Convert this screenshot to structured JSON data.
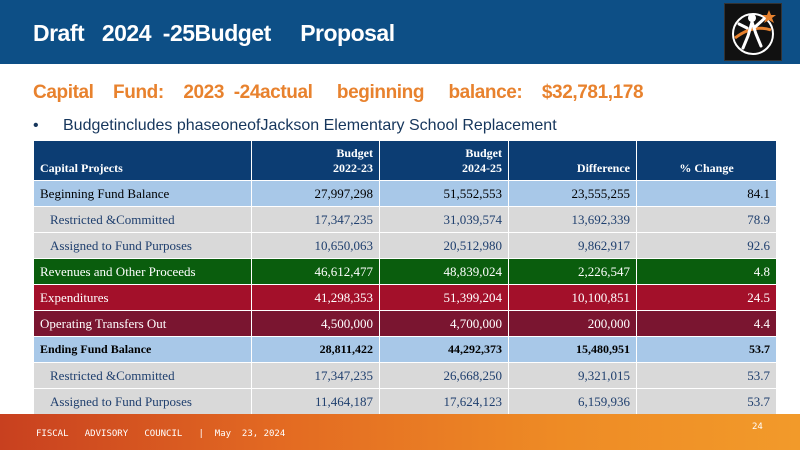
{
  "header": {
    "title": "Draft   2024  -25Budget     Proposal"
  },
  "subtitle": "Capital    Fund:    2023  -24actual     beginning     balance:    $32,781,178",
  "bullet": "Budgetincludes phaseoneofJackson Elementary School Replacement",
  "table": {
    "col1": "Capital   Projects",
    "col2_line1": "Budget",
    "col2_line2": "2022-23",
    "col3_line1": "Budget",
    "col3_line2": "2024-25",
    "col4": "Difference",
    "col5": "% Change",
    "rows": [
      {
        "label": "Beginning   Fund Balance",
        "b2223": "27,997,298",
        "b2425": "51,552,553",
        "diff": "23,555,255",
        "pct": "84.1"
      },
      {
        "label": "Restricted  &Committed",
        "b2223": "17,347,235",
        "b2425": "31,039,574",
        "diff": "13,692,339",
        "pct": "78.9"
      },
      {
        "label": "Assigned  to Fund Purposes",
        "b2223": "10,650,063",
        "b2425": "20,512,980",
        "diff": "9,862,917",
        "pct": "92.6"
      },
      {
        "label": "Revenues  and  Other  Proceeds",
        "b2223": "46,612,477",
        "b2425": "48,839,024",
        "diff": "2,226,547",
        "pct": "4.8"
      },
      {
        "label": "Expenditures",
        "b2223": "41,298,353",
        "b2425": "51,399,204",
        "diff": "10,100,851",
        "pct": "24.5"
      },
      {
        "label": "Operating   Transfers Out",
        "b2223": "4,500,000",
        "b2425": "4,700,000",
        "diff": "200,000",
        "pct": "4.4"
      },
      {
        "label": "Ending   Fund   Balance",
        "b2223": "28,811,422",
        "b2425": "44,292,373",
        "diff": "15,480,951",
        "pct": "53.7"
      },
      {
        "label": "Restricted  &Committed",
        "b2223": "17,347,235",
        "b2425": "26,668,250",
        "diff": "9,321,015",
        "pct": "53.7"
      },
      {
        "label": "Assigned  to Fund Purposes",
        "b2223": "11,464,187",
        "b2425": "17,624,123",
        "diff": "6,159,936",
        "pct": "53.7"
      }
    ]
  },
  "footer": {
    "text": "FISCAL   ADVISORY   COUNCIL   |  May  23, 2024",
    "page": "24"
  },
  "colors": {
    "header": "#0d4f86",
    "accent": "#e8822e",
    "table_head": "#0c3d73",
    "row_blue": "#a8c8e8",
    "row_gray": "#d9d9d9",
    "row_green": "#0a5d0d",
    "row_red": "#a3102a",
    "row_maroon": "#7a1530"
  },
  "logo_icon": "person-star-logo-icon"
}
